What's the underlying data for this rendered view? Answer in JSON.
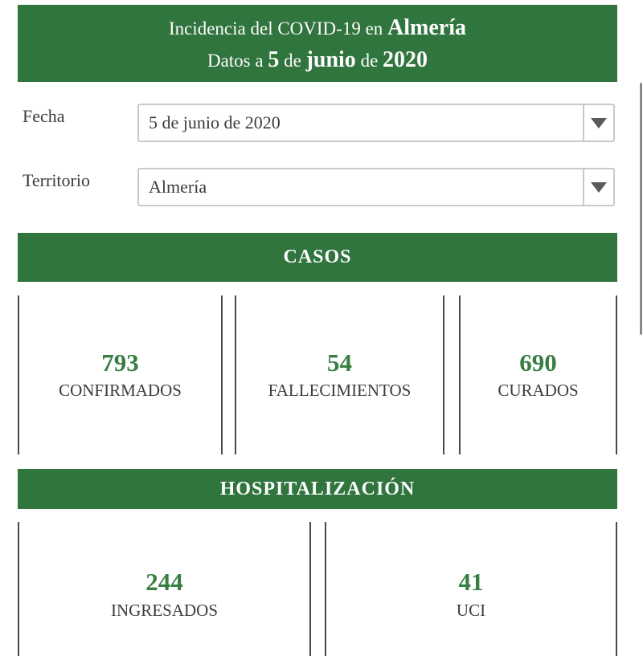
{
  "header": {
    "line1_prefix": "Incidencia del COVID-19 en ",
    "line1_territory": "Almería",
    "line2_prefix": "Datos a ",
    "line2_day": "5",
    "line2_sep1": " de ",
    "line2_month": "junio",
    "line2_sep2": " de ",
    "line2_year": "2020"
  },
  "form": {
    "fecha_label": "Fecha",
    "fecha_value": "5 de junio de 2020",
    "territorio_label": "Territorio",
    "territorio_value": "Almería"
  },
  "sections": {
    "casos_title": "CASOS",
    "hospitalizacion_title": "HOSPITALIZACIÓN"
  },
  "stats": {
    "casos": [
      {
        "value": "793",
        "label": "CONFIRMADOS"
      },
      {
        "value": "54",
        "label": "FALLECIMIENTOS"
      },
      {
        "value": "690",
        "label": "CURADOS"
      }
    ],
    "hospitalizacion": [
      {
        "value": "244",
        "label": "INGRESADOS"
      },
      {
        "value": "41",
        "label": "UCI"
      }
    ]
  },
  "icons": {
    "dropdown_arrow": "chevron-down"
  },
  "colors": {
    "banner_green": "#30743E",
    "number_green": "#377E43",
    "text_dark": "#3B3B3A",
    "card_border": "#4A4A49",
    "dropdown_border": "#C9C9C9",
    "arrow_gray": "#5A5A5A",
    "scrollbar_gray": "#8A8A8A"
  }
}
